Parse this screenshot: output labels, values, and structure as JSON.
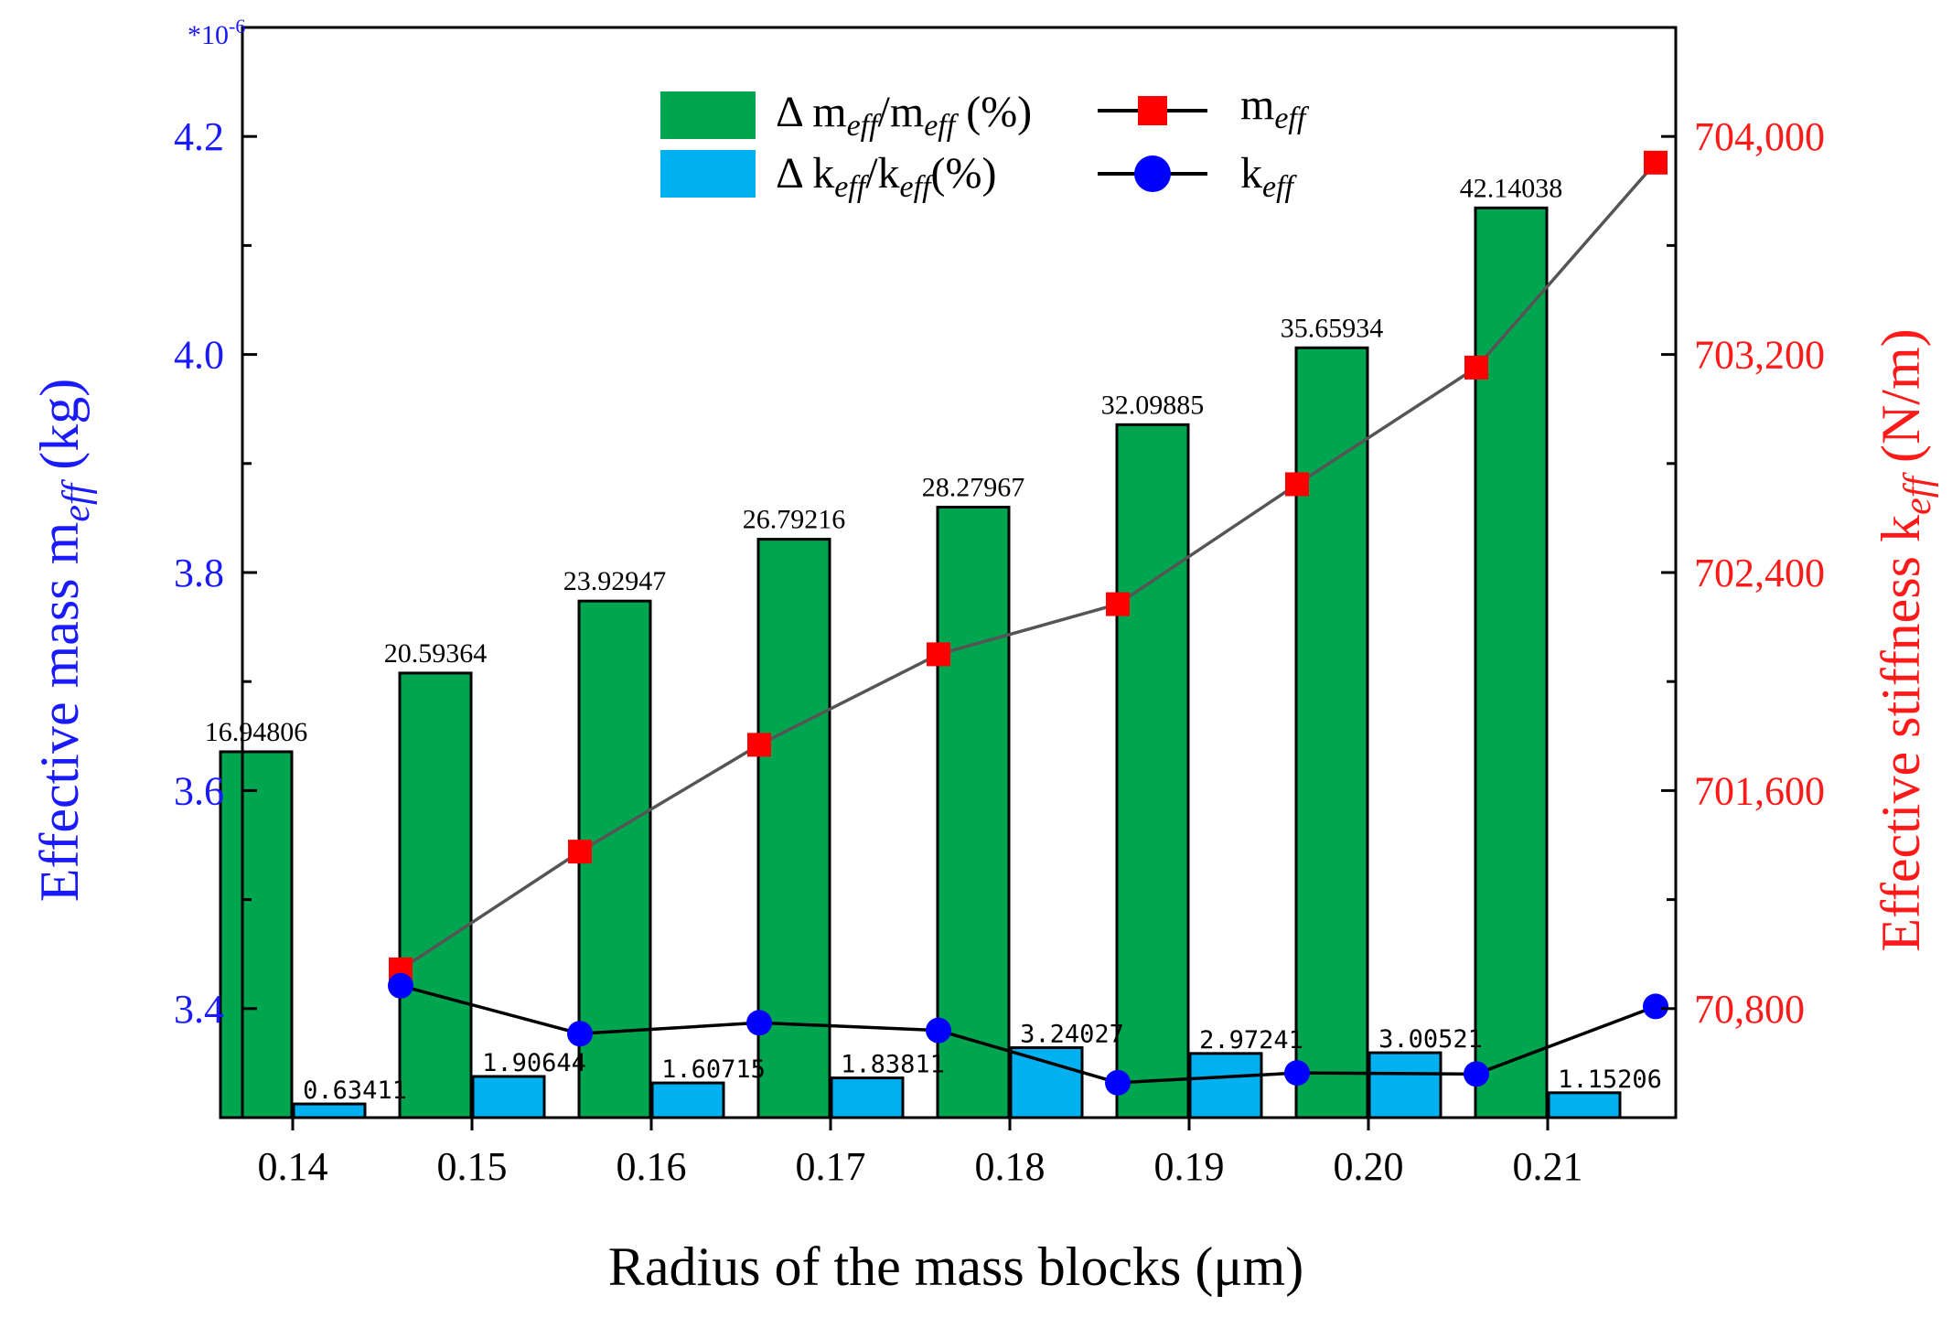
{
  "chart_data": {
    "type": "bar",
    "categories": [
      "0.14",
      "0.15",
      "0.16",
      "0.17",
      "0.18",
      "0.19",
      "0.20",
      "0.21"
    ],
    "xlabel": "Radius of the mass blocks (μm)",
    "ylabel_left": {
      "base": "Effective mass m",
      "sub": "eff",
      "unit": " (kg)"
    },
    "ylabel_right": {
      "base": "Effective stiffness k",
      "sub": "eff",
      "unit": " (N/m)"
    },
    "left_axis": {
      "multiplier": "*10",
      "exponent": "-6",
      "ylim": [
        3.3,
        4.3
      ],
      "ticks": [
        3.4,
        3.6,
        3.8,
        4.0,
        4.2
      ],
      "tick_labels": [
        "3.4",
        "3.6",
        "3.8",
        "4.0",
        "4.2"
      ],
      "color": "#1a1aff"
    },
    "right_axis": {
      "ticks": [
        70800,
        701600,
        702400,
        703200,
        704000
      ],
      "tick_labels": [
        "70,800",
        "701,600",
        "702,400",
        "703,200",
        "704,000"
      ],
      "color": "#ff1a1a"
    },
    "series": [
      {
        "name": "Δ meff/meff (%)",
        "kind": "bar",
        "color": "#00a550",
        "values": [
          16.94806,
          20.59364,
          23.92947,
          26.79216,
          28.27967,
          32.09885,
          35.65934,
          42.14038
        ],
        "labels": [
          "16.94806",
          "20.59364",
          "23.92947",
          "26.79216",
          "28.27967",
          "32.09885",
          "35.65934",
          "42.14038"
        ]
      },
      {
        "name": "Δ keff/keff(%)",
        "kind": "bar",
        "color": "#00b0f0",
        "values": [
          0.63411,
          1.90644,
          1.60715,
          1.83811,
          3.24027,
          2.97241,
          3.00521,
          1.15206
        ],
        "labels": [
          "0.63411",
          "1.90644",
          "1.60715",
          "1.83811",
          "3.24027",
          "2.97241",
          "3.00521",
          "1.15206"
        ]
      },
      {
        "name": "meff",
        "kind": "line",
        "marker": "square",
        "color": "#ff0000",
        "line_color": "#555555",
        "values_left_axis": [
          3.436,
          3.544,
          3.642,
          3.725,
          3.771,
          3.881,
          3.988,
          4.176
        ]
      },
      {
        "name": "keff",
        "kind": "line",
        "marker": "circle",
        "color": "#0000ff",
        "line_color": "#000000",
        "values_left_axis": [
          3.421,
          3.377,
          3.387,
          3.38,
          3.332,
          3.341,
          3.34,
          3.402
        ]
      }
    ],
    "legend": {
      "position": "top",
      "items": [
        {
          "base": "Δ m",
          "s1": "eff",
          "mid": "/m",
          "s2": "eff",
          "tail": " (%)"
        },
        {
          "base": "Δ k",
          "s1": "eff",
          "mid": "/k",
          "s2": "eff",
          "tail": "(%)"
        },
        {
          "base": "m",
          "s1": "eff"
        },
        {
          "base": "k",
          "s1": "eff"
        }
      ]
    }
  }
}
